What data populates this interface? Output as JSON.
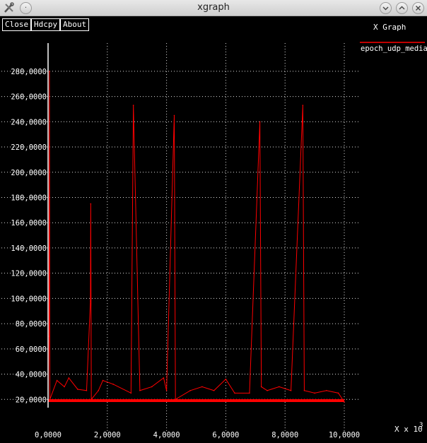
{
  "window": {
    "title": "xgraph"
  },
  "buttons": {
    "close": "Close",
    "hdcpy": "Hdcpy",
    "about": "About"
  },
  "plot": {
    "title": "X Graph",
    "x_unit_label": "X x 10",
    "x_unit_exponent": "3",
    "legend_entry": "epoch_udp_media",
    "series_color": "#ff0000"
  },
  "chart_data": {
    "type": "line",
    "title": "X Graph",
    "xlabel": "X x 10^3",
    "ylabel": "",
    "xlim": [
      0,
      10000
    ],
    "ylim": [
      0,
      290000
    ],
    "grid": true,
    "legend_position": "top-right",
    "x_tick_labels": [
      "0,0000",
      "2,0000",
      "4,0000",
      "6,0000",
      "8,0000",
      "10,0000"
    ],
    "y_tick_labels": [
      "20,0000",
      "40,0000",
      "60,0000",
      "80,0000",
      "100,0000",
      "120,0000",
      "140,0000",
      "160,0000",
      "180,0000",
      "200,0000",
      "220,0000",
      "240,0000",
      "260,0000",
      "280,0000"
    ],
    "series": [
      {
        "name": "epoch_udp_media",
        "color": "#ff0000",
        "x": [
          0,
          30,
          45,
          60,
          300,
          550,
          700,
          1000,
          1300,
          1430,
          1440,
          1460,
          1700,
          1850,
          2200,
          2800,
          2880,
          3100,
          3500,
          3900,
          4000,
          4260,
          4300,
          4800,
          5200,
          5600,
          6000,
          6300,
          6800,
          7150,
          7200,
          7400,
          7800,
          8200,
          8600,
          8650,
          9000,
          9400,
          9800,
          10000
        ],
        "y": [
          20000,
          70000,
          280000,
          20000,
          35000,
          30000,
          37000,
          28000,
          27000,
          98000,
          175000,
          20000,
          27000,
          35000,
          32000,
          25000,
          253000,
          27000,
          30000,
          37000,
          27000,
          245000,
          20000,
          27000,
          30000,
          27000,
          36000,
          25000,
          25000,
          240000,
          30000,
          27000,
          30000,
          27000,
          253000,
          27000,
          25000,
          27000,
          25000,
          18000
        ]
      }
    ]
  }
}
